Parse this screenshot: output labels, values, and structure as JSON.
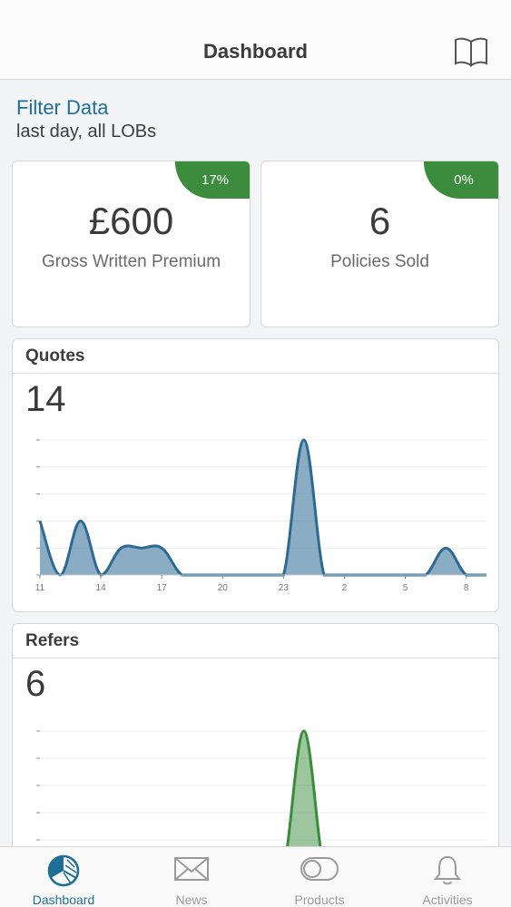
{
  "header": {
    "title": "Dashboard",
    "book_icon": "book-icon"
  },
  "filter": {
    "link_label": "Filter Data",
    "summary": "last day, all LOBs"
  },
  "kpis": [
    {
      "value": "£600",
      "label": "Gross Written Premium",
      "badge": "17%"
    },
    {
      "value": "6",
      "label": "Policies Sold",
      "badge": "0%"
    }
  ],
  "colors": {
    "accent": "#1e6f97",
    "badge_green": "#3c8c3e",
    "quotes_line": "#2c6a94",
    "refers_line": "#3c8c3e"
  },
  "quotes": {
    "title": "Quotes",
    "count": "14"
  },
  "refers": {
    "title": "Refers",
    "count": "6"
  },
  "chart_data": [
    {
      "type": "area",
      "title": "Quotes",
      "x_tick_labels": [
        "11",
        "14",
        "17",
        "20",
        "23",
        "2",
        "5",
        "8"
      ],
      "x": [
        11,
        12,
        13,
        14,
        15,
        16,
        17,
        18,
        19,
        20,
        21,
        22,
        23,
        24,
        25,
        26,
        27,
        28,
        29,
        30,
        31,
        32,
        33
      ],
      "values": [
        2,
        0,
        2,
        0,
        1,
        1,
        1,
        0,
        0,
        0,
        0,
        0,
        0,
        5,
        0,
        0,
        0,
        0,
        0,
        0,
        1,
        0,
        0
      ],
      "ylim": [
        0,
        5
      ],
      "grid": true
    },
    {
      "type": "area",
      "title": "Refers",
      "x": [
        11,
        12,
        13,
        14,
        15,
        16,
        17,
        18,
        19,
        20,
        21,
        22,
        23,
        24,
        25,
        26,
        27,
        28,
        29,
        30,
        31,
        32,
        33
      ],
      "values": [
        0,
        0,
        0,
        0,
        0,
        0,
        0,
        0,
        0,
        0,
        0,
        0,
        0,
        5,
        0,
        0,
        0,
        0,
        0,
        0,
        0,
        0,
        0
      ],
      "ylim": [
        0,
        5
      ],
      "grid": true
    }
  ],
  "tabs": [
    {
      "label": "Dashboard",
      "icon": "pie-chart-icon",
      "active": true
    },
    {
      "label": "News",
      "icon": "envelope-icon",
      "active": false
    },
    {
      "label": "Products",
      "icon": "toggle-icon",
      "active": false
    },
    {
      "label": "Activities",
      "icon": "bell-icon",
      "active": false
    }
  ]
}
